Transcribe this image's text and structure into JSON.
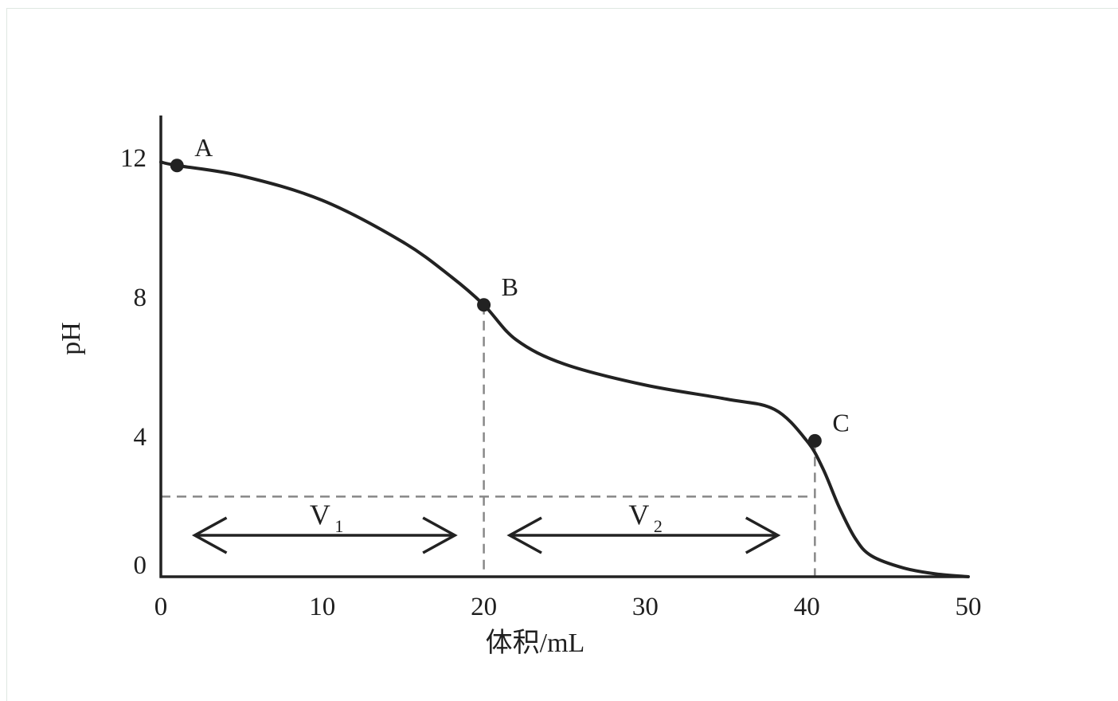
{
  "chart_data": {
    "type": "line",
    "xlabel": "体积/mL",
    "ylabel": "pH",
    "xlim": [
      0,
      50
    ],
    "ylim": [
      0,
      13
    ],
    "x_ticks": [
      "0",
      "10",
      "20",
      "30",
      "40",
      "50"
    ],
    "y_ticks": [
      "0",
      "4",
      "8",
      "12"
    ],
    "grid": false,
    "series": [
      {
        "x": [
          0,
          1,
          5,
          10,
          15,
          18,
          20,
          22,
          25,
          30,
          35,
          38,
          40,
          41,
          42,
          43,
          44,
          46,
          48,
          50
        ],
        "y": [
          11.9,
          11.8,
          11.5,
          10.8,
          9.6,
          8.6,
          7.8,
          6.8,
          6.1,
          5.5,
          5.1,
          4.8,
          3.9,
          3.1,
          2.0,
          1.1,
          0.6,
          0.25,
          0.08,
          0.0
        ]
      }
    ],
    "points": [
      {
        "label": "A",
        "x": 1,
        "y": 11.8
      },
      {
        "label": "B",
        "x": 20,
        "y": 7.8
      },
      {
        "label": "C",
        "x": 40.5,
        "y": 3.9
      }
    ],
    "reference_lines": {
      "vertical_x": [
        20,
        40.5
      ],
      "horizontal_y": 2.3
    },
    "intervals": [
      {
        "label": "V",
        "subscript": "1",
        "from": 2,
        "to": 18.5
      },
      {
        "label": "V",
        "subscript": "2",
        "from": 21.5,
        "to": 38.5
      }
    ],
    "colors": {
      "curve": "#222222",
      "axis": "#222222",
      "reference": "#888888",
      "text": "#1f1f1f"
    }
  }
}
